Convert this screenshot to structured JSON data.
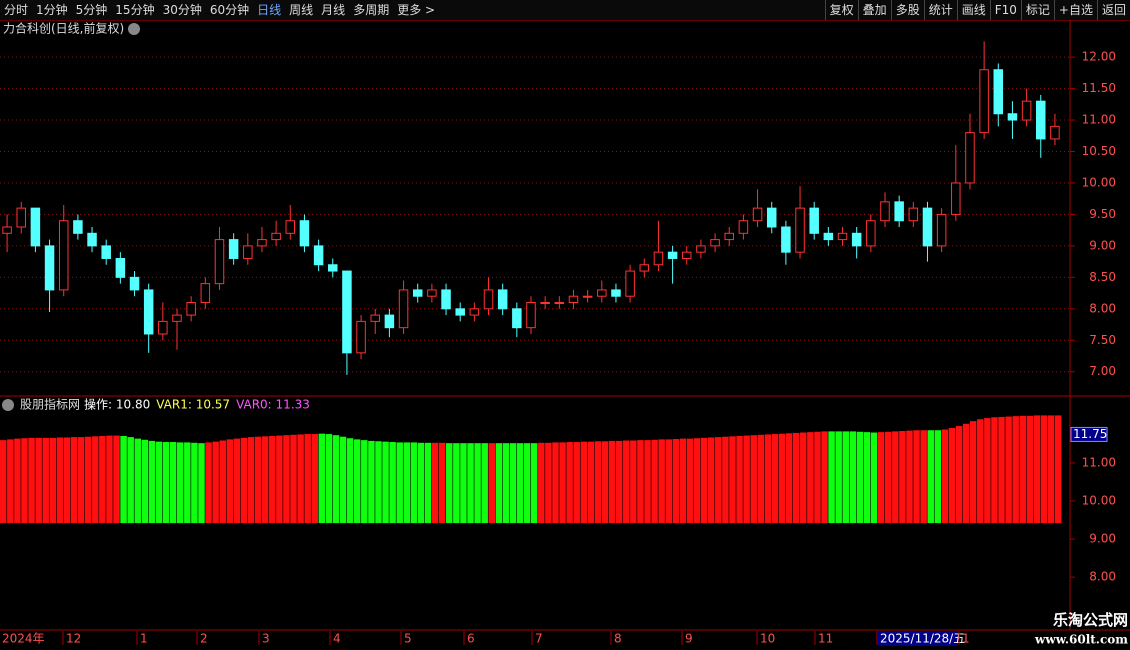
{
  "toolbar": {
    "left": [
      "分时",
      "1分钟",
      "5分钟",
      "15分钟",
      "30分钟",
      "60分钟",
      "日线",
      "周线",
      "月线",
      "多周期",
      "更多 >"
    ],
    "active": "日线",
    "right": [
      "复权",
      "叠加",
      "多股",
      "统计",
      "画线",
      "F10",
      "标记",
      "+自选",
      "返回"
    ]
  },
  "main_chart": {
    "type": "candlestick",
    "title": "力合科创(日线,前复权)",
    "up_color": "#ff3232",
    "down_color": "#54ffff",
    "ylim": [
      6.63,
      12.32
    ],
    "yticks": [
      {
        "value": 12,
        "label": "12.00"
      },
      {
        "value": 11.5,
        "label": "11.50"
      },
      {
        "value": 11,
        "label": "11.00"
      },
      {
        "value": 10.5,
        "label": "10.50"
      },
      {
        "value": 10,
        "label": "10.00"
      },
      {
        "value": 9.5,
        "label": "9.50"
      },
      {
        "value": 9,
        "label": "9.00"
      },
      {
        "value": 8.5,
        "label": "8.50"
      },
      {
        "value": 8,
        "label": "8.00"
      },
      {
        "value": 7.5,
        "label": "7.50"
      },
      {
        "value": 7,
        "label": "7.00"
      }
    ],
    "candles": [
      [
        9.2,
        9.5,
        8.9,
        9.3
      ],
      [
        9.3,
        9.7,
        9.2,
        9.6
      ],
      [
        9.6,
        9.6,
        8.9,
        9.0
      ],
      [
        9.0,
        9.1,
        7.95,
        8.3
      ],
      [
        8.3,
        9.65,
        8.2,
        9.4
      ],
      [
        9.4,
        9.5,
        9.1,
        9.2
      ],
      [
        9.2,
        9.3,
        8.9,
        9.0
      ],
      [
        9.0,
        9.1,
        8.7,
        8.8
      ],
      [
        8.8,
        8.9,
        8.4,
        8.5
      ],
      [
        8.5,
        8.6,
        8.2,
        8.3
      ],
      [
        8.3,
        8.4,
        7.3,
        7.6
      ],
      [
        7.6,
        8.1,
        7.5,
        7.8
      ],
      [
        7.8,
        8.0,
        7.35,
        7.9
      ],
      [
        7.9,
        8.2,
        7.8,
        8.1
      ],
      [
        8.1,
        8.5,
        8.0,
        8.4
      ],
      [
        8.4,
        9.3,
        8.3,
        9.1
      ],
      [
        9.1,
        9.2,
        8.7,
        8.8
      ],
      [
        8.8,
        9.2,
        8.7,
        9.0
      ],
      [
        9.0,
        9.3,
        8.9,
        9.1
      ],
      [
        9.1,
        9.4,
        9.0,
        9.2
      ],
      [
        9.2,
        9.65,
        9.1,
        9.4
      ],
      [
        9.4,
        9.5,
        8.9,
        9.0
      ],
      [
        9.0,
        9.1,
        8.6,
        8.7
      ],
      [
        8.7,
        8.8,
        8.5,
        8.6
      ],
      [
        8.6,
        8.6,
        6.95,
        7.3
      ],
      [
        7.3,
        7.9,
        7.2,
        7.8
      ],
      [
        7.8,
        8.0,
        7.6,
        7.9
      ],
      [
        7.9,
        8.0,
        7.55,
        7.7
      ],
      [
        7.7,
        8.45,
        7.6,
        8.3
      ],
      [
        8.3,
        8.4,
        8.1,
        8.2
      ],
      [
        8.2,
        8.4,
        8.1,
        8.3
      ],
      [
        8.3,
        8.4,
        7.9,
        8.0
      ],
      [
        8.0,
        8.1,
        7.8,
        7.9
      ],
      [
        7.9,
        8.1,
        7.8,
        8.0
      ],
      [
        8.0,
        8.5,
        7.9,
        8.3
      ],
      [
        8.3,
        8.4,
        7.9,
        8.0
      ],
      [
        8.0,
        8.1,
        7.55,
        7.7
      ],
      [
        7.7,
        8.2,
        7.6,
        8.1
      ],
      [
        8.1,
        8.2,
        8.0,
        8.1
      ],
      [
        8.1,
        8.2,
        8.0,
        8.1
      ],
      [
        8.1,
        8.3,
        8.0,
        8.2
      ],
      [
        8.2,
        8.3,
        8.1,
        8.2
      ],
      [
        8.2,
        8.45,
        8.1,
        8.3
      ],
      [
        8.3,
        8.4,
        8.1,
        8.2
      ],
      [
        8.2,
        8.7,
        8.1,
        8.6
      ],
      [
        8.6,
        8.8,
        8.5,
        8.7
      ],
      [
        8.7,
        9.4,
        8.6,
        8.9
      ],
      [
        8.9,
        9.0,
        8.4,
        8.8
      ],
      [
        8.8,
        9.0,
        8.7,
        8.9
      ],
      [
        8.9,
        9.1,
        8.8,
        9.0
      ],
      [
        9.0,
        9.2,
        8.9,
        9.1
      ],
      [
        9.1,
        9.3,
        9.0,
        9.2
      ],
      [
        9.2,
        9.5,
        9.1,
        9.4
      ],
      [
        9.4,
        9.9,
        9.3,
        9.6
      ],
      [
        9.6,
        9.7,
        9.2,
        9.3
      ],
      [
        9.3,
        9.4,
        8.7,
        8.9
      ],
      [
        8.9,
        9.95,
        8.8,
        9.6
      ],
      [
        9.6,
        9.7,
        9.1,
        9.2
      ],
      [
        9.2,
        9.3,
        9.0,
        9.1
      ],
      [
        9.1,
        9.3,
        9.0,
        9.2
      ],
      [
        9.2,
        9.3,
        8.8,
        9.0
      ],
      [
        9.0,
        9.5,
        8.9,
        9.4
      ],
      [
        9.4,
        9.85,
        9.3,
        9.7
      ],
      [
        9.7,
        9.8,
        9.3,
        9.4
      ],
      [
        9.4,
        9.7,
        9.3,
        9.6
      ],
      [
        9.6,
        9.7,
        8.75,
        9.0
      ],
      [
        9.0,
        9.6,
        8.9,
        9.5
      ],
      [
        9.5,
        10.6,
        9.4,
        10.0
      ],
      [
        10.0,
        11.1,
        9.9,
        10.8
      ],
      [
        10.8,
        12.25,
        10.7,
        11.8
      ],
      [
        11.8,
        11.9,
        10.9,
        11.1
      ],
      [
        11.1,
        11.3,
        10.7,
        11.0
      ],
      [
        11.0,
        11.5,
        10.9,
        11.3
      ],
      [
        11.3,
        11.4,
        10.4,
        10.7
      ],
      [
        10.7,
        11.1,
        10.6,
        10.9
      ]
    ]
  },
  "indicator_chart": {
    "type": "bar",
    "name": "股朋指标网",
    "legend": [
      {
        "text": "操作: 10.80",
        "color": "#ffffff"
      },
      {
        "text": "VAR1: 10.57",
        "color": "#ffff54"
      },
      {
        "text": "VAR0: 11.33",
        "color": "#ff54ff"
      }
    ],
    "ylim": [
      6.61,
      12.76
    ],
    "base": 9.42,
    "marker": 11.75,
    "yticks": [
      {
        "value": 11,
        "label": "11.00"
      },
      {
        "value": 10,
        "label": "10.00"
      },
      {
        "value": 9,
        "label": "9.00"
      },
      {
        "value": 8,
        "label": "8.00"
      }
    ],
    "segments": [
      {
        "color": "#ff1010",
        "values": [
          11.6,
          11.62,
          11.64,
          11.65,
          11.66,
          11.66,
          11.66,
          11.66,
          11.67,
          11.67,
          11.68,
          11.68,
          11.69,
          11.7,
          11.71,
          11.72,
          11.72
        ]
      },
      {
        "color": "#10ff10",
        "values": [
          11.71,
          11.68,
          11.64,
          11.61,
          11.58,
          11.56,
          11.55,
          11.55,
          11.54,
          11.54,
          11.53,
          11.52
        ]
      },
      {
        "color": "#ff1010",
        "values": [
          11.54,
          11.56,
          11.59,
          11.62,
          11.64,
          11.66,
          11.68,
          11.69,
          11.7,
          11.71,
          11.72,
          11.73,
          11.74,
          11.75,
          11.76,
          11.76
        ]
      },
      {
        "color": "#10ff10",
        "values": [
          11.77,
          11.76,
          11.73,
          11.69,
          11.65,
          11.62,
          11.6,
          11.58,
          11.57,
          11.56,
          11.55,
          11.54,
          11.54,
          11.54,
          11.53,
          11.53
        ]
      },
      {
        "color": "#ff1010",
        "values": [
          11.53,
          11.53
        ]
      },
      {
        "color": "#10ff10",
        "values": [
          11.52,
          11.52,
          11.52,
          11.52,
          11.52,
          11.52
        ]
      },
      {
        "color": "#ff1010",
        "values": [
          11.52
        ]
      },
      {
        "color": "#10ff10",
        "values": [
          11.52,
          11.52,
          11.52,
          11.52,
          11.52,
          11.52
        ]
      },
      {
        "color": "#ff1010",
        "values": [
          11.53,
          11.53,
          11.54,
          11.54,
          11.55,
          11.55,
          11.56,
          11.56,
          11.57,
          11.57,
          11.58,
          11.58,
          11.59,
          11.59,
          11.6,
          11.6,
          11.61,
          11.62,
          11.62,
          11.63,
          11.64,
          11.64,
          11.65,
          11.66,
          11.67,
          11.68,
          11.69,
          11.7,
          11.71,
          11.72,
          11.73,
          11.74,
          11.75,
          11.76,
          11.77,
          11.78,
          11.79,
          11.8,
          11.81,
          11.82,
          11.83
        ]
      },
      {
        "color": "#10ff10",
        "values": [
          11.83,
          11.83,
          11.83,
          11.83,
          11.82,
          11.81,
          11.8
        ]
      },
      {
        "color": "#ff1010",
        "values": [
          11.81,
          11.82,
          11.83,
          11.84,
          11.85,
          11.86,
          11.86
        ]
      },
      {
        "color": "#10ff10",
        "values": [
          11.86,
          11.86
        ]
      },
      {
        "color": "#ff1010",
        "values": [
          11.88,
          11.92,
          11.97,
          12.03,
          12.1,
          12.15,
          12.18,
          12.2,
          12.21,
          12.22,
          12.23,
          12.24,
          12.24,
          12.25,
          12.25,
          12.25,
          12.25
        ]
      }
    ]
  },
  "time_axis": {
    "labels": [
      "2024年",
      "12",
      "1",
      "2",
      "3",
      "4",
      "5",
      "6",
      "7",
      "8",
      "9",
      "10",
      "11",
      "2025/11/28/五",
      "1"
    ],
    "current": "2025/11/28/五"
  },
  "watermark": {
    "name": "乐淘公式网",
    "url": "www.60lt.com"
  }
}
